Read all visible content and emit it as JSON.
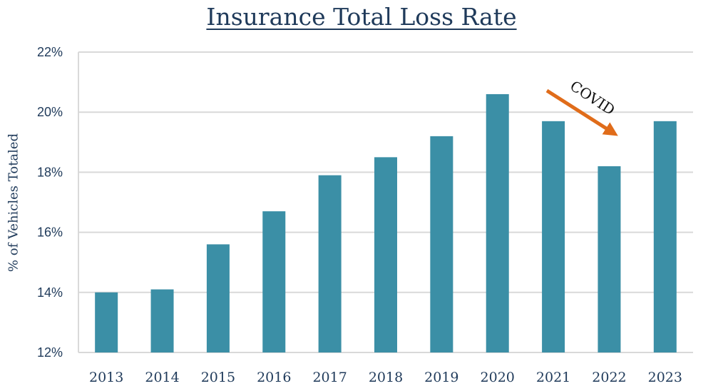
{
  "chart_data": {
    "type": "bar",
    "title": "Insurance Total Loss Rate",
    "xlabel": "",
    "ylabel": "% of Vehicles Totaled",
    "categories": [
      "2013",
      "2014",
      "2015",
      "2016",
      "2017",
      "2018",
      "2019",
      "2020",
      "2021",
      "2022",
      "2023"
    ],
    "values": [
      14.0,
      14.1,
      15.6,
      16.7,
      17.9,
      18.5,
      19.2,
      20.6,
      19.7,
      18.2,
      19.7
    ],
    "ylim": [
      12,
      22
    ],
    "yticks": [
      "12%",
      "14%",
      "16%",
      "18%",
      "20%",
      "22%"
    ],
    "grid": true,
    "bar_color": "#3b8fa6",
    "annotation": {
      "text": "COVID",
      "arrow_color": "#e06c1a",
      "arrow_direction": "down-right"
    }
  }
}
